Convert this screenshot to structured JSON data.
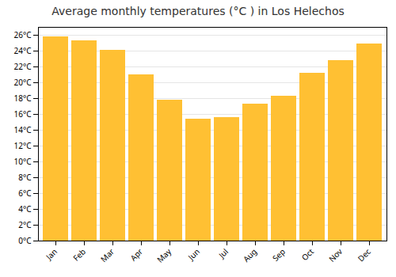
{
  "chart_data": {
    "type": "bar",
    "title": "Average monthly temperatures (°C ) in Los Helechos",
    "categories": [
      "Jan",
      "Feb",
      "Mar",
      "Apr",
      "May",
      "Jun",
      "Jul",
      "Aug",
      "Sep",
      "Oct",
      "Nov",
      "Dec"
    ],
    "values": [
      25.8,
      25.3,
      24.1,
      21.0,
      17.8,
      15.4,
      15.6,
      17.3,
      18.3,
      21.2,
      22.8,
      24.9
    ],
    "color": "#FFC033",
    "ylim": [
      0,
      27
    ],
    "yticks": [
      {
        "value": 0,
        "label": "0°C"
      },
      {
        "value": 2,
        "label": "2°C"
      },
      {
        "value": 4,
        "label": "4°C"
      },
      {
        "value": 6,
        "label": "6°C"
      },
      {
        "value": 8,
        "label": "8°C"
      },
      {
        "value": 10,
        "label": "10°C"
      },
      {
        "value": 12,
        "label": "12°C"
      },
      {
        "value": 14,
        "label": "14°C"
      },
      {
        "value": 16,
        "label": "16°C"
      },
      {
        "value": 18,
        "label": "18°C"
      },
      {
        "value": 20,
        "label": "20°C"
      },
      {
        "value": 22,
        "label": "22°C"
      },
      {
        "value": 24,
        "label": "24°C"
      },
      {
        "value": 26,
        "label": "26°C"
      }
    ],
    "grid": true
  }
}
